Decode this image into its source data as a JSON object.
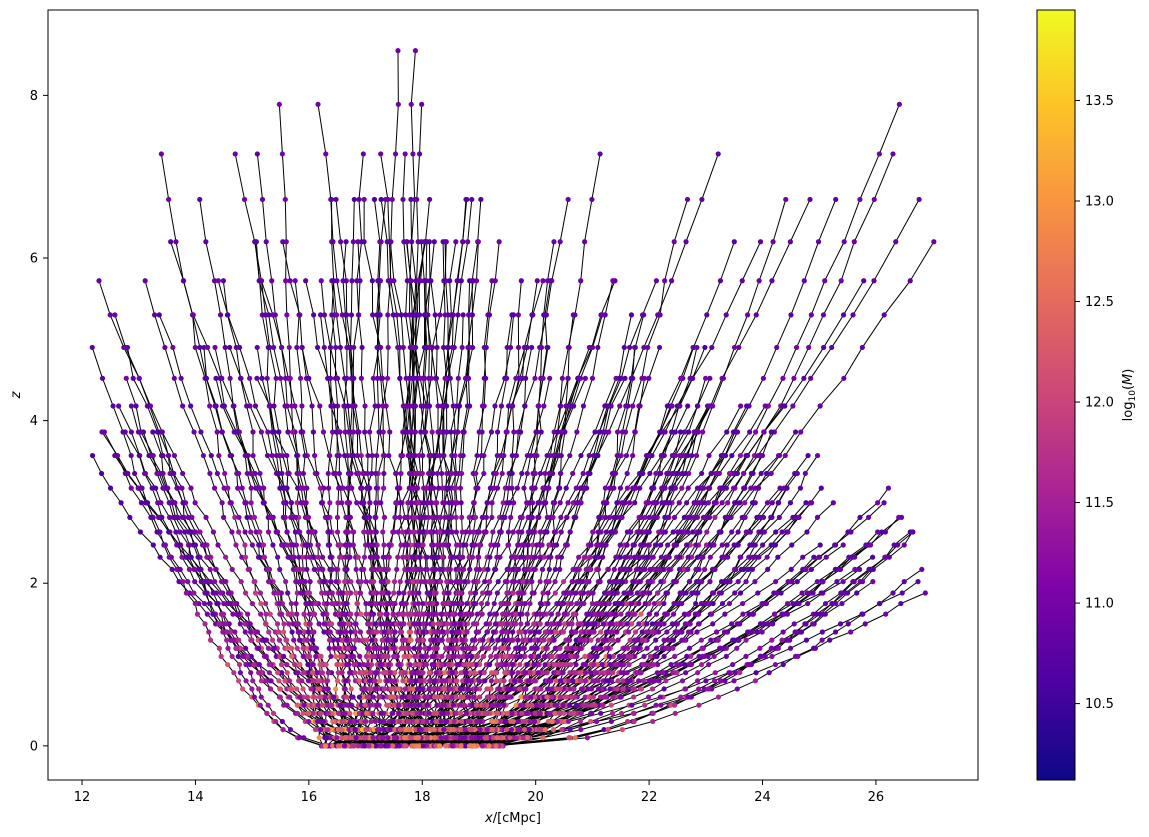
{
  "chart_data": {
    "type": "scatter",
    "subtype": "merger-tree",
    "title": "",
    "xlabel": "x/[cMpc]",
    "ylabel": "z",
    "xlim": [
      11.4,
      27.8
    ],
    "ylim": [
      -0.42,
      9.05
    ],
    "xticks": [
      "12",
      "14",
      "16",
      "18",
      "20",
      "22",
      "24",
      "26"
    ],
    "yticks": [
      "0",
      "2",
      "4",
      "6",
      "8"
    ],
    "grid": false,
    "edge_color": "#000000",
    "colormap": "plasma",
    "colorbar": {
      "label": "log10(M)",
      "range": [
        10.12,
        13.95
      ],
      "ticks": [
        "10.5",
        "11.0",
        "11.5",
        "12.0",
        "12.5",
        "13.0",
        "13.5"
      ]
    },
    "snapshot_redshifts": [
      0,
      0.1,
      0.2,
      0.3,
      0.4,
      0.5,
      0.6,
      0.7,
      0.8,
      0.9,
      1.0,
      1.1,
      1.2,
      1.3,
      1.4,
      1.5,
      1.62,
      1.75,
      1.88,
      2.02,
      2.17,
      2.32,
      2.47,
      2.63,
      2.81,
      2.99,
      3.17,
      3.35,
      3.57,
      3.86,
      4.18,
      4.52,
      4.9,
      5.3,
      5.72,
      6.2,
      6.72,
      7.28,
      7.89,
      8.55
    ],
    "branch_tips": [
      {
        "x": 12.15,
        "z": 3.57,
        "m": 10.6
      },
      {
        "x": 12.2,
        "z": 4.9,
        "m": 10.7
      },
      {
        "x": 12.3,
        "z": 5.72,
        "m": 10.8
      },
      {
        "x": 12.6,
        "z": 5.3,
        "m": 10.9
      },
      {
        "x": 13.1,
        "z": 5.72,
        "m": 10.8
      },
      {
        "x": 13.4,
        "z": 7.28,
        "m": 10.9
      },
      {
        "x": 13.6,
        "z": 6.2,
        "m": 10.7
      },
      {
        "x": 14.1,
        "z": 6.72,
        "m": 10.8
      },
      {
        "x": 14.7,
        "z": 7.28,
        "m": 10.9
      },
      {
        "x": 15.1,
        "z": 7.28,
        "m": 10.8
      },
      {
        "x": 15.5,
        "z": 7.89,
        "m": 11.0
      },
      {
        "x": 16.2,
        "z": 7.89,
        "m": 10.9
      },
      {
        "x": 16.4,
        "z": 6.72,
        "m": 10.8
      },
      {
        "x": 16.95,
        "z": 7.28,
        "m": 10.8
      },
      {
        "x": 17.3,
        "z": 7.28,
        "m": 10.9
      },
      {
        "x": 17.6,
        "z": 8.55,
        "m": 10.9
      },
      {
        "x": 17.85,
        "z": 8.55,
        "m": 10.9
      },
      {
        "x": 17.95,
        "z": 7.89,
        "m": 10.8
      },
      {
        "x": 18.1,
        "z": 6.72,
        "m": 10.8
      },
      {
        "x": 18.75,
        "z": 6.72,
        "m": 10.9
      },
      {
        "x": 19.6,
        "z": 5.3,
        "m": 10.8
      },
      {
        "x": 20.6,
        "z": 6.72,
        "m": 10.9
      },
      {
        "x": 21.1,
        "z": 7.28,
        "m": 10.8
      },
      {
        "x": 21.4,
        "z": 5.72,
        "m": 10.7
      },
      {
        "x": 22.1,
        "z": 5.72,
        "m": 10.8
      },
      {
        "x": 22.65,
        "z": 6.72,
        "m": 10.9
      },
      {
        "x": 23.25,
        "z": 7.28,
        "m": 10.8
      },
      {
        "x": 23.5,
        "z": 6.2,
        "m": 10.7
      },
      {
        "x": 24.0,
        "z": 6.2,
        "m": 10.8
      },
      {
        "x": 24.4,
        "z": 6.72,
        "m": 10.9
      },
      {
        "x": 24.8,
        "z": 6.72,
        "m": 10.8
      },
      {
        "x": 25.3,
        "z": 6.72,
        "m": 10.8
      },
      {
        "x": 25.8,
        "z": 5.72,
        "m": 10.7
      },
      {
        "x": 26.3,
        "z": 7.28,
        "m": 10.9
      },
      {
        "x": 26.4,
        "z": 7.89,
        "m": 10.9
      },
      {
        "x": 26.8,
        "z": 6.72,
        "m": 10.8
      },
      {
        "x": 27.0,
        "z": 6.2,
        "m": 10.8
      }
    ],
    "root_region": {
      "x_range": [
        16.2,
        19.0
      ],
      "z": 0,
      "max_mass": 13.9
    }
  }
}
